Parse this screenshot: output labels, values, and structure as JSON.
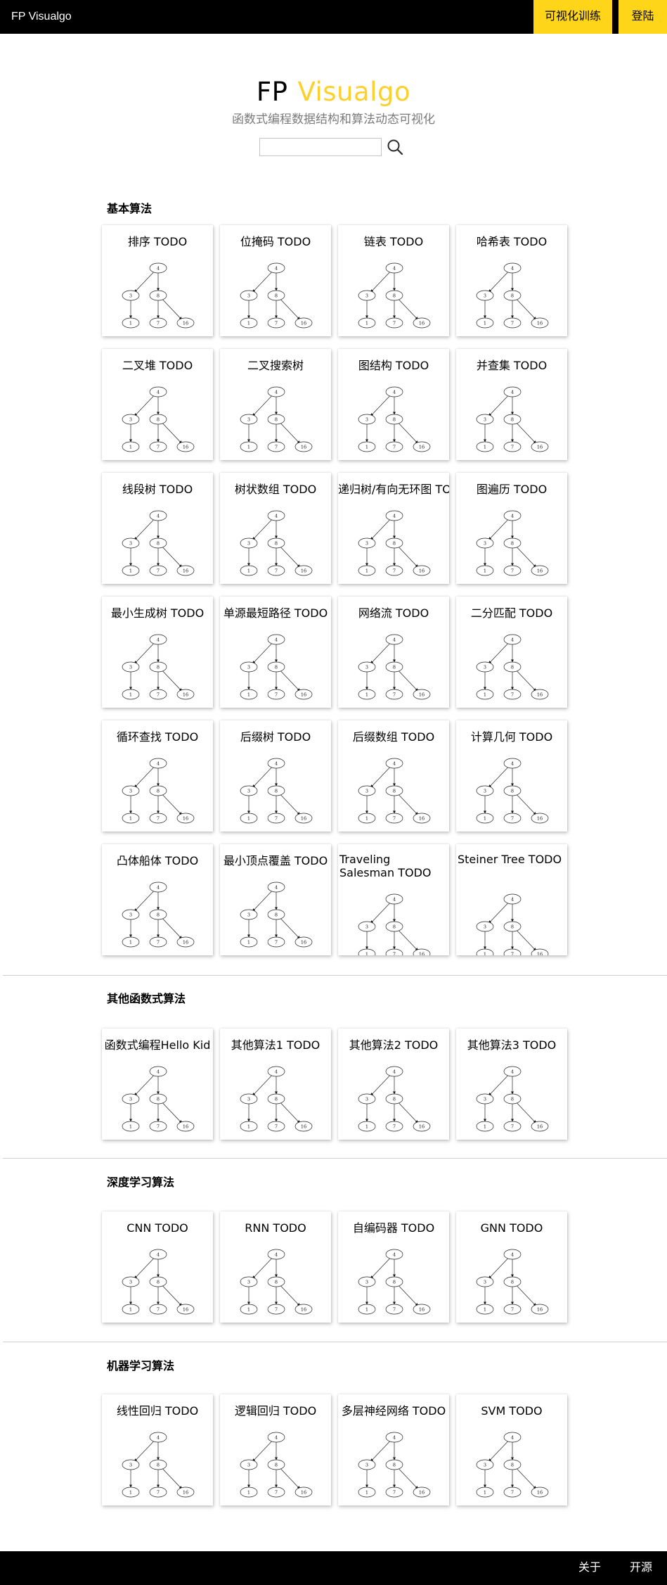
{
  "header": {
    "brand": "FP Visualgo",
    "nav_train": "可视化训练",
    "nav_login": "登陆"
  },
  "hero": {
    "title_part1": "FP",
    "title_part2": "Visualgo",
    "subtitle": "函数式编程数据结构和算法动态可视化",
    "search_placeholder": "",
    "search_value": ""
  },
  "colors": {
    "topbar": "#000000",
    "accent_yellow": "#ffd51a",
    "title_yellow": "#fed02b",
    "subtitle_gray": "#7b7b7b"
  },
  "tree_labels": [
    "4",
    "3",
    "8",
    "1",
    "7",
    "16"
  ],
  "sections": [
    {
      "title": "基本算法",
      "cards": [
        "排序 TODO",
        "位掩码 TODO",
        "链表 TODO",
        "哈希表 TODO",
        "二叉堆 TODO",
        "二叉搜索树",
        "图结构 TODO",
        "并查集 TODO",
        "线段树 TODO",
        "树状数组 TODO",
        "递归树/有向无环图 TODO",
        "图遍历 TODO",
        "最小生成树 TODO",
        "单源最短路径 TODO",
        "网络流 TODO",
        "二分匹配 TODO",
        "循环查找 TODO",
        "后缀树 TODO",
        "后缀数组 TODO",
        "计算几何 TODO",
        "凸体船体 TODO",
        "最小顶点覆盖 TODO",
        "Traveling Salesman TODO",
        "Steiner Tree TODO"
      ]
    },
    {
      "title": "其他函数式算法",
      "cards": [
        "函数式编程Hello Kid",
        "其他算法1 TODO",
        "其他算法2 TODO",
        "其他算法3 TODO"
      ]
    },
    {
      "title": "深度学习算法",
      "cards": [
        "CNN TODO",
        "RNN TODO",
        "自编码器 TODO",
        "GNN TODO"
      ]
    },
    {
      "title": "机器学习算法",
      "cards": [
        "线性回归 TODO",
        "逻辑回归 TODO",
        "多层神经网络 TODO",
        "SVM TODO"
      ]
    }
  ],
  "footer": {
    "about": "关于",
    "open_source": "开源"
  }
}
